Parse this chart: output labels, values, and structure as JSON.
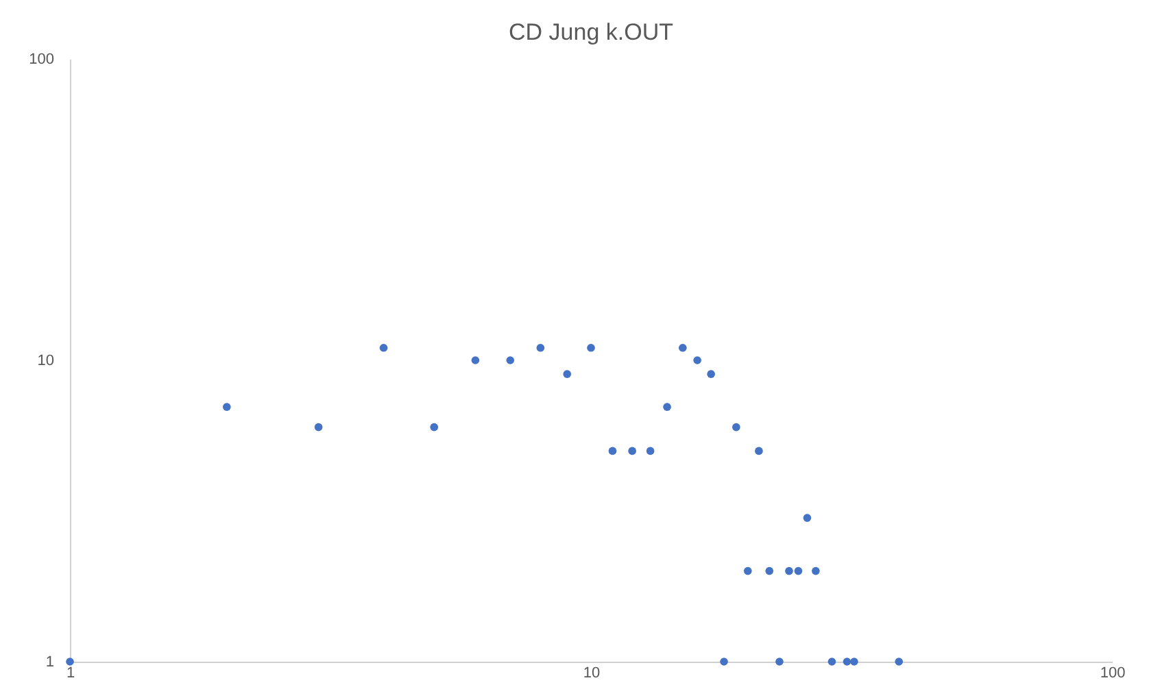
{
  "chart_data": {
    "type": "scatter",
    "title": "CD Jung k.OUT",
    "x": [
      1,
      2,
      3,
      4,
      5,
      6,
      7,
      8,
      9,
      10,
      11,
      12,
      13,
      14,
      15,
      16,
      17,
      18,
      19,
      20,
      21,
      22,
      23,
      24,
      25,
      26,
      27,
      29,
      31,
      32,
      39
    ],
    "series": [
      {
        "color": "#4472c4",
        "values": [
          1,
          7,
          6,
          11,
          6,
          10,
          10,
          11,
          9,
          11,
          5,
          5,
          5,
          7,
          11,
          10,
          9,
          1,
          6,
          2,
          5,
          2,
          1,
          2,
          2,
          3,
          2,
          1,
          1,
          1,
          1
        ]
      }
    ],
    "log": "xy",
    "xlim": [
      1,
      100
    ],
    "ylim": [
      1,
      100
    ],
    "xticks": [
      1,
      10,
      100
    ],
    "yticks": [
      1,
      10,
      100
    ],
    "grid": false,
    "legend": false,
    "marker": "circle"
  }
}
